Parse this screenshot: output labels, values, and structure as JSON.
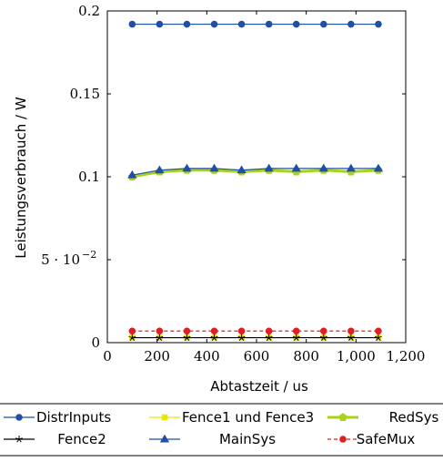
{
  "chart_data": {
    "type": "line",
    "xlabel": "Abtastzeit / us",
    "ylabel": "Leistungsverbrauch / W",
    "xlim": [
      0,
      1200
    ],
    "ylim": [
      0,
      0.2
    ],
    "x_ticks": [
      {
        "value": 0,
        "label": "0"
      },
      {
        "value": 200,
        "label": "200"
      },
      {
        "value": 400,
        "label": "400"
      },
      {
        "value": 600,
        "label": "600"
      },
      {
        "value": 800,
        "label": "800"
      },
      {
        "value": 1000,
        "label": "1,000"
      },
      {
        "value": 1200,
        "label": "1,200"
      }
    ],
    "y_ticks": [
      {
        "value": 0,
        "label": "0"
      },
      {
        "value": 0.05,
        "label": "5 · 10",
        "exp": "−2"
      },
      {
        "value": 0.1,
        "label": "0.1"
      },
      {
        "value": 0.15,
        "label": "0.15"
      },
      {
        "value": 0.2,
        "label": "0.2"
      }
    ],
    "grid": false,
    "legend_position": "bottom",
    "x": [
      100,
      210,
      320,
      430,
      540,
      650,
      760,
      870,
      980,
      1090
    ],
    "series": [
      {
        "name": "DistrInputs",
        "color": "#1f4fa8",
        "marker": "circle",
        "dash": "none",
        "values": [
          0.192,
          0.192,
          0.192,
          0.192,
          0.192,
          0.192,
          0.192,
          0.192,
          0.192,
          0.192
        ]
      },
      {
        "name": "Fence1 und Fence3",
        "color": "#e8e800",
        "marker": "square",
        "dash": "none",
        "values": [
          0.003,
          0.003,
          0.003,
          0.003,
          0.003,
          0.003,
          0.003,
          0.003,
          0.003,
          0.003
        ]
      },
      {
        "name": "RedSys",
        "color": "#a8d21c",
        "marker": "pentagon",
        "dash": "none",
        "values": [
          0.1,
          0.103,
          0.104,
          0.104,
          0.103,
          0.104,
          0.103,
          0.104,
          0.103,
          0.104
        ]
      },
      {
        "name": "Fence2",
        "color": "#000000",
        "marker": "star",
        "dash": "none",
        "values": [
          0.003,
          0.003,
          0.003,
          0.003,
          0.003,
          0.003,
          0.003,
          0.003,
          0.003,
          0.003
        ]
      },
      {
        "name": "MainSys",
        "color": "#1f4fa8",
        "marker": "triangle",
        "dash": "none",
        "values": [
          0.101,
          0.104,
          0.105,
          0.105,
          0.104,
          0.105,
          0.105,
          0.105,
          0.105,
          0.105
        ]
      },
      {
        "name": "SafeMux",
        "color": "#e02020",
        "marker": "circle",
        "dash": "4,3",
        "values": [
          0.007,
          0.007,
          0.007,
          0.007,
          0.007,
          0.007,
          0.007,
          0.007,
          0.007,
          0.007
        ]
      }
    ]
  }
}
